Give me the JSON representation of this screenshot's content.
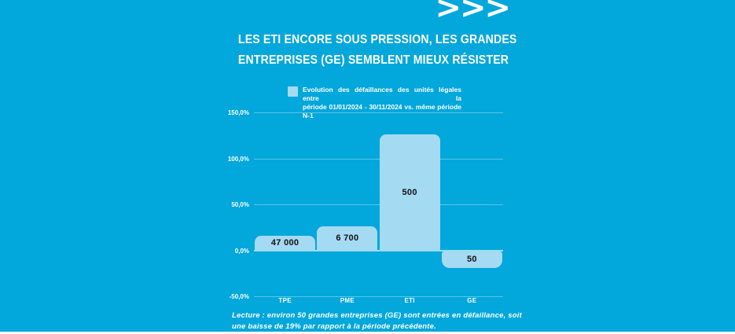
{
  "page": {
    "background_color": "#02a7db",
    "accent_marks": ">>>",
    "title_line1": "LES ETI ENCORE SOUS PRESSION, LES GRANDES",
    "title_line2": "ENTREPRISES (GE) SEMBLENT MIEUX RÉSISTER"
  },
  "legend": {
    "swatch_color": "#a5daf3",
    "line1": "Evolution des défaillances des unités légales entre la",
    "line2": "période 01/01/2024 - 30/11/2024 vs. même période  N-1"
  },
  "chart_data": {
    "type": "bar",
    "categories": [
      "TPE",
      "PME",
      "ETI",
      "GE"
    ],
    "values": [
      16,
      26,
      126,
      -19
    ],
    "bar_labels": [
      "47 000",
      "6 700",
      "500",
      "50"
    ],
    "unit": "%",
    "title": "Evolution des défaillances des unités légales entre la période 01/01/2024 - 30/11/2024 vs. même période N-1",
    "xlabel": "",
    "ylabel": "",
    "ylim": [
      -50,
      150
    ],
    "ytick_labels": [
      "150,0%",
      "100,0%",
      "50,0%",
      "0,0%",
      "-50,0%"
    ],
    "ytick_values": [
      150,
      100,
      50,
      0,
      -50
    ],
    "bar_color": "#a5daf3",
    "grid": true,
    "legend_position": "top"
  },
  "footnote": {
    "line1": "Lecture : environ 50 grandes entreprises (GE) sont entrées en défaillance, soit",
    "line2": "une baisse de 19% par rapport à la période précédente."
  }
}
